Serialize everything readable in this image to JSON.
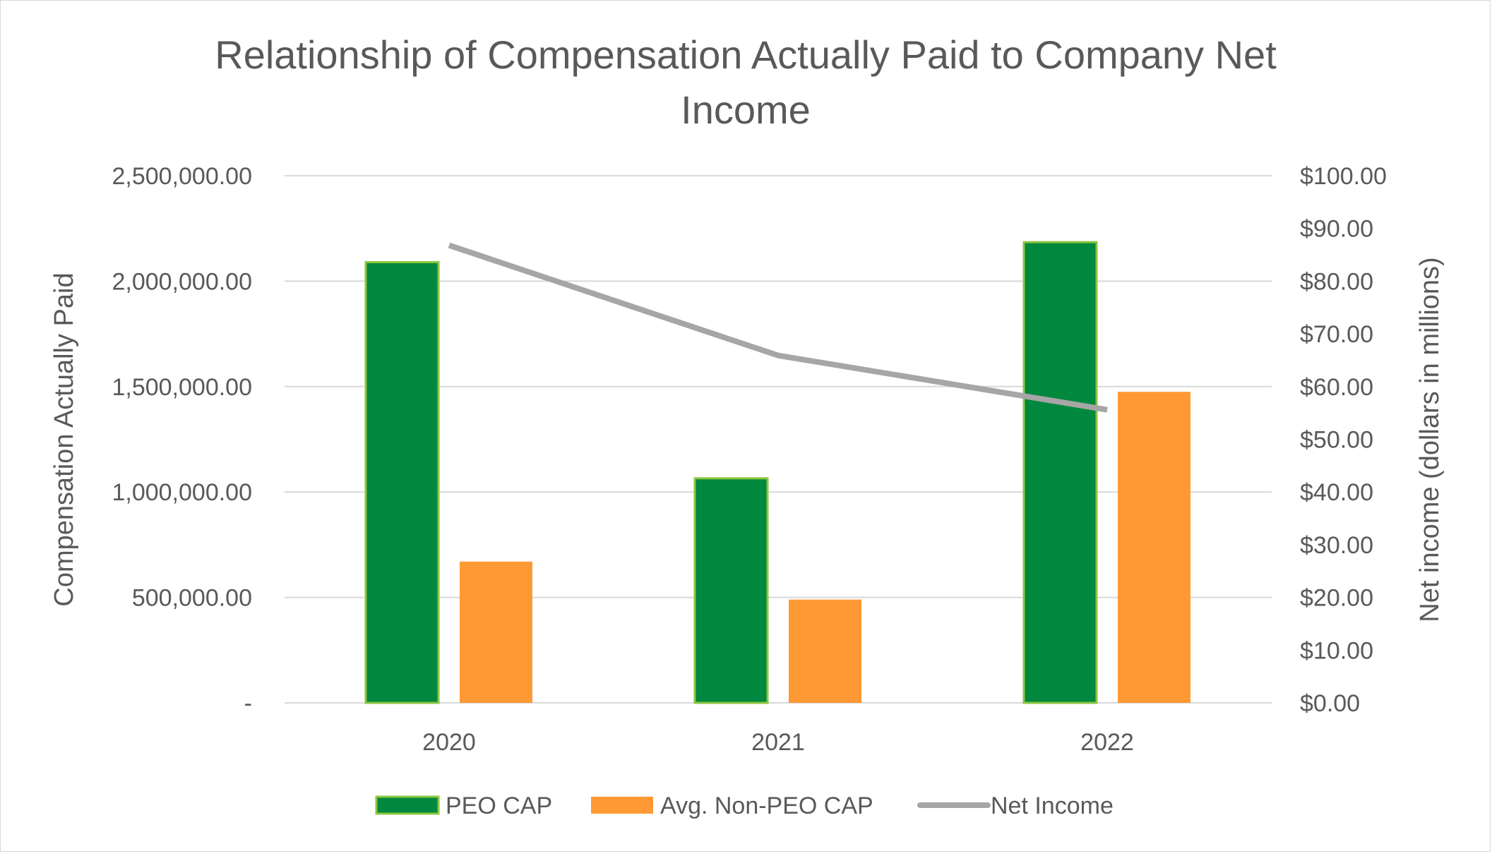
{
  "chart_data": {
    "type": "bar",
    "title_line1": "Relationship of Compensation Actually Paid to Company Net",
    "title_line2": "Income",
    "categories": [
      "2020",
      "2021",
      "2022"
    ],
    "series": [
      {
        "name": "PEO CAP",
        "type": "bar",
        "axis": "left",
        "color": "#00883e",
        "values": [
          2090000,
          1065000,
          2185000
        ]
      },
      {
        "name": "Avg. Non-PEO CAP",
        "type": "bar",
        "axis": "left",
        "color": "#ff9933",
        "values": [
          670000,
          490000,
          1475000
        ]
      },
      {
        "name": "Net Income",
        "type": "line",
        "axis": "right",
        "color": "#a6a6a6",
        "values": [
          86.8,
          65.9,
          55.6
        ]
      }
    ],
    "ylabel": "Compensation Actually Paid",
    "y2label": "Net income (dollars in millions)",
    "ylim": [
      0,
      2500000
    ],
    "y2lim": [
      0,
      100
    ],
    "yticks": [
      "-",
      "500,000.00",
      "1,000,000.00",
      "1,500,000.00",
      "2,000,000.00",
      "2,500,000.00"
    ],
    "y2ticks": [
      "$0.00",
      "$10.00",
      "$20.00",
      "$30.00",
      "$40.00",
      "$50.00",
      "$60.00",
      "$70.00",
      "$80.00",
      "$90.00",
      "$100.00"
    ],
    "grid": true,
    "legend_position": "bottom"
  }
}
